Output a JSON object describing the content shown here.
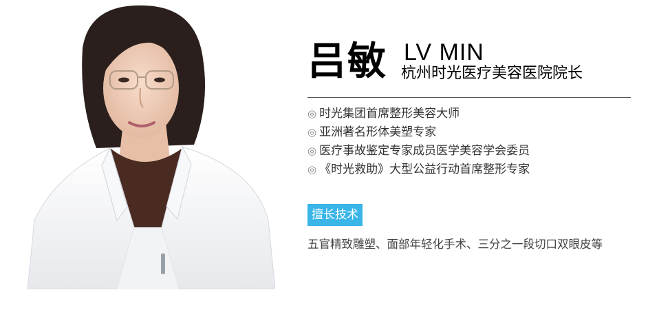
{
  "doctor": {
    "name": "吕敏",
    "english_name": "LV MIN",
    "position": "杭州时光医疗美容医院院长"
  },
  "titles": [
    "时光集团首席整形美容大师",
    "亚洲著名形体美塑专家",
    "医疗事故鉴定专家成员医学美容学会委员",
    "《时光救助》大型公益行动首席整形专家"
  ],
  "bullet_symbol": "◎",
  "specialty": {
    "label": "擅长技术",
    "text": "五官精致雕塑、面部年轻化手术、三分之一段切口双眼皮等"
  },
  "colors": {
    "badge": "#3ab5e8",
    "divider": "#555555"
  }
}
